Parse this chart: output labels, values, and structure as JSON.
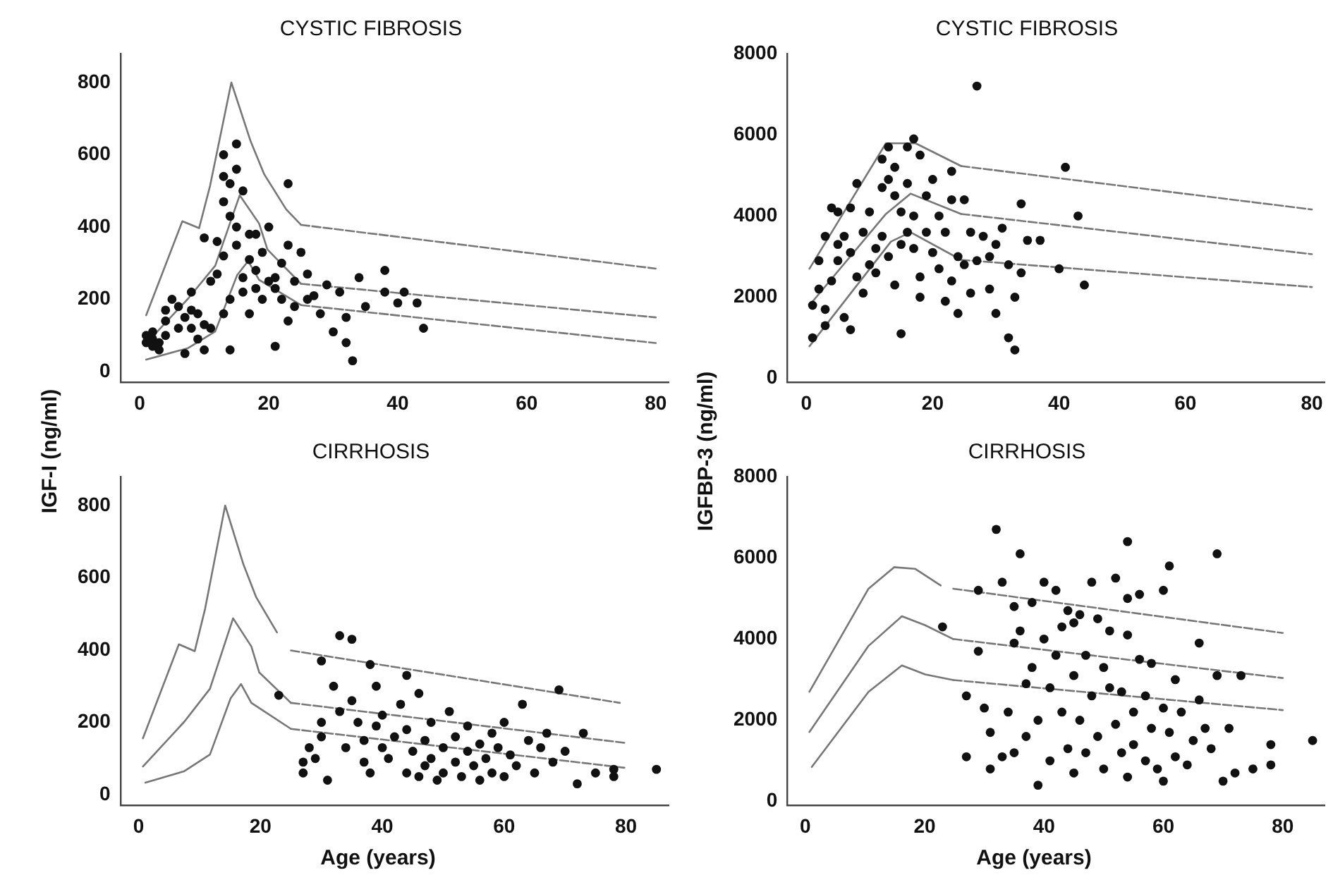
{
  "chart_data": [
    {
      "type": "scatter",
      "title": "CYSTIC FIBROSIS",
      "ylabel": "IGF-I (ng/ml)",
      "xlim": [
        -3,
        82
      ],
      "ylim": [
        -30,
        880
      ],
      "xticks": [
        0,
        20,
        40,
        60,
        80
      ],
      "yticks": [
        0,
        200,
        400,
        600,
        800
      ],
      "series": [
        {
          "type": "scatter",
          "color": "#111111",
          "marker": "circle",
          "x": [
            1,
            2,
            2,
            3,
            2,
            3,
            4,
            1,
            4,
            4,
            5,
            6,
            6,
            7,
            7,
            8,
            8,
            8,
            9,
            9,
            10,
            10,
            10,
            11,
            11,
            12,
            12,
            13,
            13,
            13,
            13,
            13,
            14,
            14,
            14,
            14,
            15,
            15,
            15,
            15,
            16,
            16,
            16,
            17,
            17,
            17,
            18,
            18,
            18,
            19,
            19,
            20,
            20,
            21,
            21,
            21,
            22,
            22,
            23,
            23,
            23,
            24,
            24,
            25,
            26,
            26,
            27,
            28,
            29,
            30,
            31,
            32,
            32,
            33,
            34,
            35,
            38,
            38,
            40,
            41,
            43,
            44
          ],
          "values": [
            100,
            90,
            70,
            80,
            110,
            60,
            100,
            80,
            170,
            140,
            200,
            120,
            180,
            150,
            50,
            170,
            120,
            220,
            160,
            90,
            130,
            60,
            370,
            250,
            120,
            360,
            270,
            540,
            600,
            470,
            320,
            160,
            520,
            430,
            200,
            60,
            560,
            630,
            400,
            350,
            500,
            260,
            220,
            380,
            310,
            160,
            380,
            280,
            230,
            330,
            200,
            250,
            400,
            260,
            230,
            70,
            300,
            200,
            520,
            350,
            140,
            250,
            180,
            330,
            270,
            200,
            210,
            160,
            240,
            110,
            220,
            80,
            150,
            30,
            260,
            180,
            220,
            280,
            190,
            220,
            190,
            120
          ]
        },
        {
          "type": "line",
          "color": "#777777",
          "marker": "none",
          "line_style": "solid",
          "x": [
            1,
            6.6,
            9.2,
            10.9,
            14.2,
            17.2,
            19.3,
            22.7,
            25
          ],
          "values": [
            156,
            416,
            397,
            514,
            800,
            637,
            546,
            449,
            406
          ]
        },
        {
          "type": "line",
          "color": "#777777",
          "marker": "none",
          "line_style": "dashed",
          "x": [
            25,
            80
          ],
          "values": [
            406,
            285
          ]
        },
        {
          "type": "line",
          "color": "#777777",
          "marker": "none",
          "line_style": "solid",
          "x": [
            1,
            7.5,
            11.7,
            15.5,
            18.5,
            19.8,
            25
          ],
          "values": [
            78,
            202,
            293,
            488,
            410,
            338,
            243
          ]
        },
        {
          "type": "line",
          "color": "#777777",
          "marker": "none",
          "line_style": "dashed",
          "x": [
            25,
            80
          ],
          "values": [
            243,
            150
          ]
        },
        {
          "type": "line",
          "color": "#777777",
          "marker": "none",
          "line_style": "solid",
          "x": [
            1,
            7.5,
            11.7,
            15.1,
            16.8,
            18.5,
            25
          ],
          "values": [
            33,
            65,
            111,
            267,
            306,
            254,
            184
          ]
        },
        {
          "type": "line",
          "color": "#777777",
          "marker": "none",
          "line_style": "dashed",
          "x": [
            25,
            80
          ],
          "values": [
            184,
            79
          ]
        }
      ]
    },
    {
      "type": "scatter",
      "title": "CYSTIC FIBROSIS",
      "ylabel": "IGFBP-3 (ng/ml)",
      "xlim": [
        -3,
        82
      ],
      "ylim": [
        -100,
        8000
      ],
      "xticks": [
        0,
        20,
        40,
        60,
        80
      ],
      "yticks": [
        0,
        2000,
        4000,
        6000,
        8000
      ],
      "series": [
        {
          "type": "scatter",
          "color": "#111111",
          "marker": "circle",
          "x": [
            1,
            1,
            2,
            2,
            3,
            3,
            3,
            4,
            4,
            5,
            5,
            5,
            6,
            6,
            7,
            7,
            7,
            8,
            8,
            9,
            9,
            10,
            10,
            11,
            11,
            12,
            12,
            12,
            13,
            13,
            13,
            14,
            14,
            14,
            15,
            15,
            15,
            16,
            16,
            16,
            17,
            17,
            17,
            18,
            18,
            18,
            19,
            19,
            20,
            20,
            21,
            21,
            22,
            22,
            23,
            23,
            23,
            24,
            24,
            25,
            25,
            26,
            26,
            27,
            27,
            28,
            29,
            29,
            30,
            30,
            31,
            32,
            32,
            33,
            33,
            34,
            34,
            35,
            37,
            40,
            41,
            43,
            44
          ],
          "values": [
            1800,
            1000,
            2200,
            2900,
            3500,
            1300,
            1700,
            4200,
            2400,
            4100,
            3300,
            2900,
            3500,
            1500,
            4200,
            3100,
            1200,
            4800,
            2500,
            3600,
            2100,
            4100,
            2800,
            3200,
            2600,
            4700,
            3500,
            5400,
            5700,
            4900,
            3000,
            5200,
            4500,
            2300,
            4100,
            1100,
            3300,
            5700,
            4800,
            3600,
            5900,
            4000,
            3200,
            5500,
            2500,
            2000,
            4500,
            3600,
            4900,
            3100,
            4000,
            2700,
            3600,
            1900,
            5100,
            4400,
            2400,
            3000,
            1600,
            4400,
            2800,
            3600,
            2100,
            7200,
            2900,
            3500,
            2200,
            3000,
            3300,
            1600,
            3700,
            1000,
            2800,
            700,
            2000,
            4300,
            2600,
            3400,
            3400,
            2700,
            5200,
            4000,
            2300
          ]
        },
        {
          "type": "line",
          "color": "#777777",
          "marker": "none",
          "line_style": "solid",
          "x": [
            0.5,
            12.6,
            17.3,
            24.5
          ],
          "values": [
            2700,
            5790,
            5790,
            5230
          ]
        },
        {
          "type": "line",
          "color": "#777777",
          "marker": "none",
          "line_style": "dashed",
          "x": [
            24.5,
            80
          ],
          "values": [
            5230,
            4160
          ]
        },
        {
          "type": "line",
          "color": "#777777",
          "marker": "none",
          "line_style": "solid",
          "x": [
            0.5,
            12.6,
            16.5,
            24.5
          ],
          "values": [
            1800,
            4050,
            4550,
            4050
          ]
        },
        {
          "type": "line",
          "color": "#777777",
          "marker": "none",
          "line_style": "dashed",
          "x": [
            24.5,
            80
          ],
          "values": [
            4050,
            3060
          ]
        },
        {
          "type": "line",
          "color": "#777777",
          "marker": "none",
          "line_style": "solid",
          "x": [
            0.5,
            13.4,
            16.5,
            24.5
          ],
          "values": [
            790,
            3370,
            3600,
            2920
          ]
        },
        {
          "type": "line",
          "color": "#777777",
          "marker": "none",
          "line_style": "dashed",
          "x": [
            24.5,
            80
          ],
          "values": [
            2920,
            2250
          ]
        }
      ]
    },
    {
      "type": "scatter",
      "title": "CIRRHOSIS",
      "xlabel": "Age (years)",
      "xlim": [
        -3,
        87
      ],
      "ylim": [
        -30,
        880
      ],
      "xticks": [
        0,
        20,
        40,
        60,
        80
      ],
      "yticks": [
        0,
        200,
        400,
        600,
        800
      ],
      "series": [
        {
          "type": "scatter",
          "color": "#111111",
          "marker": "circle",
          "x": [
            23,
            27,
            27,
            28,
            29,
            30,
            30,
            30,
            31,
            32,
            33,
            33,
            34,
            35,
            35,
            36,
            37,
            37,
            38,
            38,
            39,
            39,
            40,
            40,
            41,
            42,
            43,
            44,
            44,
            44,
            45,
            46,
            46,
            47,
            47,
            48,
            48,
            49,
            50,
            50,
            51,
            52,
            52,
            53,
            54,
            54,
            55,
            56,
            56,
            57,
            58,
            58,
            59,
            60,
            60,
            61,
            62,
            63,
            64,
            65,
            66,
            67,
            68,
            69,
            70,
            72,
            73,
            75,
            78,
            78,
            85
          ],
          "values": [
            275,
            60,
            90,
            130,
            100,
            370,
            200,
            160,
            40,
            300,
            440,
            230,
            130,
            430,
            260,
            200,
            90,
            150,
            60,
            360,
            300,
            190,
            130,
            220,
            100,
            160,
            250,
            330,
            60,
            180,
            120,
            280,
            50,
            150,
            80,
            200,
            100,
            40,
            130,
            60,
            230,
            160,
            90,
            50,
            120,
            190,
            80,
            140,
            40,
            100,
            60,
            170,
            130,
            200,
            50,
            110,
            80,
            250,
            150,
            60,
            130,
            170,
            90,
            290,
            120,
            30,
            170,
            60,
            50,
            70,
            70
          ]
        },
        {
          "type": "line",
          "color": "#777777",
          "marker": "none",
          "line_style": "solid",
          "x": [
            0.7,
            6.6,
            9.2,
            10.9,
            14.2,
            17.2,
            19.3,
            22.7
          ],
          "values": [
            156,
            416,
            397,
            514,
            800,
            637,
            546,
            449
          ]
        },
        {
          "type": "line",
          "color": "#777777",
          "marker": "none",
          "line_style": "dashed",
          "x": [
            25,
            79
          ],
          "values": [
            399,
            254
          ]
        },
        {
          "type": "line",
          "color": "#777777",
          "marker": "none",
          "line_style": "solid",
          "x": [
            0.7,
            7.5,
            11.7,
            15.5,
            18.5,
            19.8,
            25
          ],
          "values": [
            78,
            202,
            293,
            488,
            410,
            338,
            254
          ]
        },
        {
          "type": "line",
          "color": "#777777",
          "marker": "none",
          "line_style": "dashed",
          "x": [
            25,
            80
          ],
          "values": [
            254,
            143
          ]
        },
        {
          "type": "line",
          "color": "#777777",
          "marker": "none",
          "line_style": "solid",
          "x": [
            1.1,
            7.5,
            11.7,
            15.1,
            16.8,
            18.5,
            25
          ],
          "values": [
            33,
            65,
            111,
            267,
            306,
            254,
            182
          ]
        },
        {
          "type": "line",
          "color": "#777777",
          "marker": "none",
          "line_style": "dashed",
          "x": [
            25,
            80
          ],
          "values": [
            182,
            74
          ]
        }
      ]
    },
    {
      "type": "scatter",
      "title": "CIRRHOSIS",
      "xlabel": "Age (years)",
      "xlim": [
        -3,
        87
      ],
      "ylim": [
        -100,
        8000
      ],
      "xticks": [
        0,
        20,
        40,
        60,
        80
      ],
      "yticks": [
        0,
        2000,
        4000,
        6000,
        8000
      ],
      "series": [
        {
          "type": "scatter",
          "color": "#111111",
          "marker": "circle",
          "x": [
            23,
            27,
            27,
            29,
            29,
            30,
            31,
            31,
            32,
            33,
            33,
            34,
            35,
            35,
            35,
            36,
            36,
            37,
            37,
            38,
            38,
            39,
            39,
            40,
            40,
            41,
            41,
            42,
            42,
            43,
            43,
            44,
            44,
            45,
            45,
            45,
            46,
            46,
            47,
            47,
            48,
            48,
            49,
            49,
            50,
            50,
            51,
            51,
            52,
            52,
            53,
            53,
            54,
            54,
            54,
            54,
            55,
            55,
            56,
            56,
            57,
            57,
            58,
            58,
            59,
            60,
            60,
            60,
            61,
            61,
            62,
            62,
            63,
            64,
            65,
            66,
            66,
            67,
            68,
            69,
            69,
            70,
            71,
            72,
            73,
            75,
            78,
            78,
            85
          ],
          "values": [
            4300,
            1100,
            2600,
            5200,
            3700,
            2300,
            1700,
            800,
            6700,
            5400,
            1100,
            2200,
            4800,
            3900,
            1200,
            6100,
            4200,
            2900,
            1600,
            4900,
            3300,
            400,
            2000,
            5400,
            4000,
            2800,
            1000,
            5200,
            3600,
            4300,
            2200,
            4700,
            1300,
            4400,
            3100,
            700,
            4600,
            2000,
            3600,
            1200,
            5400,
            2600,
            4500,
            1600,
            3300,
            800,
            4200,
            2800,
            5500,
            1900,
            2700,
            1200,
            6400,
            5000,
            4100,
            600,
            2200,
            1400,
            5100,
            3500,
            2600,
            1000,
            1800,
            3400,
            800,
            5200,
            2300,
            500,
            5800,
            1700,
            3000,
            1100,
            2200,
            900,
            1500,
            3900,
            2500,
            1800,
            1300,
            6100,
            3100,
            500,
            1800,
            700,
            3100,
            800,
            1400,
            900,
            1500
          ]
        },
        {
          "type": "line",
          "color": "#777777",
          "marker": "none",
          "line_style": "solid",
          "x": [
            0.7,
            10.6,
            14.9,
            18.4,
            22.7
          ],
          "values": [
            2700,
            5240,
            5770,
            5730,
            5320
          ]
        },
        {
          "type": "line",
          "color": "#777777",
          "marker": "none",
          "line_style": "dashed",
          "x": [
            24.8,
            80
          ],
          "values": [
            5240,
            4150
          ]
        },
        {
          "type": "line",
          "color": "#777777",
          "marker": "none",
          "line_style": "solid",
          "x": [
            0.7,
            10.6,
            16.2,
            20.1,
            24.8
          ],
          "values": [
            1710,
            3830,
            4560,
            4340,
            4000
          ]
        },
        {
          "type": "line",
          "color": "#777777",
          "marker": "none",
          "line_style": "dashed",
          "x": [
            24.8,
            80
          ],
          "values": [
            4000,
            3040
          ]
        },
        {
          "type": "line",
          "color": "#777777",
          "marker": "none",
          "line_style": "solid",
          "x": [
            1.1,
            10.6,
            16.2,
            20.1,
            24.8
          ],
          "values": [
            850,
            2700,
            3350,
            3130,
            2990
          ]
        },
        {
          "type": "line",
          "color": "#777777",
          "marker": "none",
          "line_style": "dashed",
          "x": [
            24.8,
            80
          ],
          "values": [
            2990,
            2250
          ]
        }
      ]
    }
  ]
}
